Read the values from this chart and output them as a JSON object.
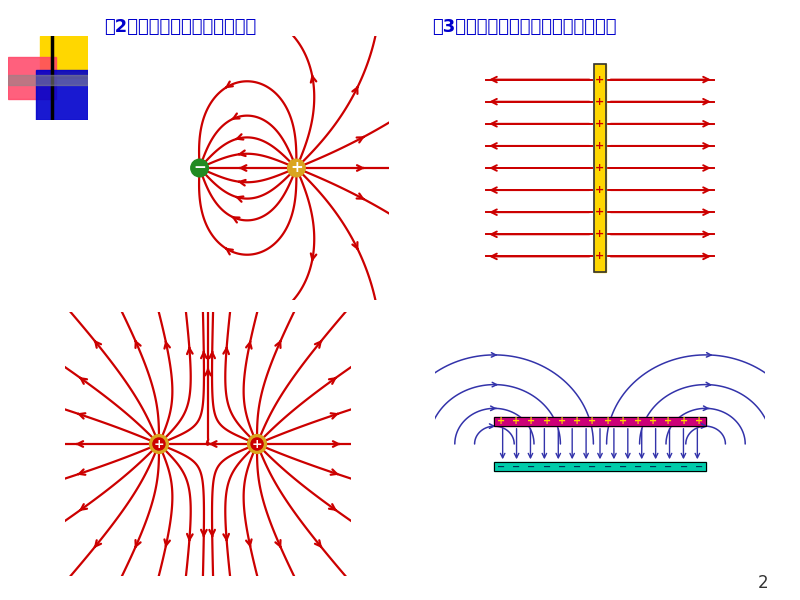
{
  "title1": "（2）电偶极子电场中的电场线",
  "title2": "（3）无限大带电平面电场中的电场线",
  "title_color": "#0000CC",
  "bg_color": "#FFFFFF",
  "page_number": "2",
  "field_line_color": "#CC0000",
  "capacitor_field_color": "#3333AA"
}
